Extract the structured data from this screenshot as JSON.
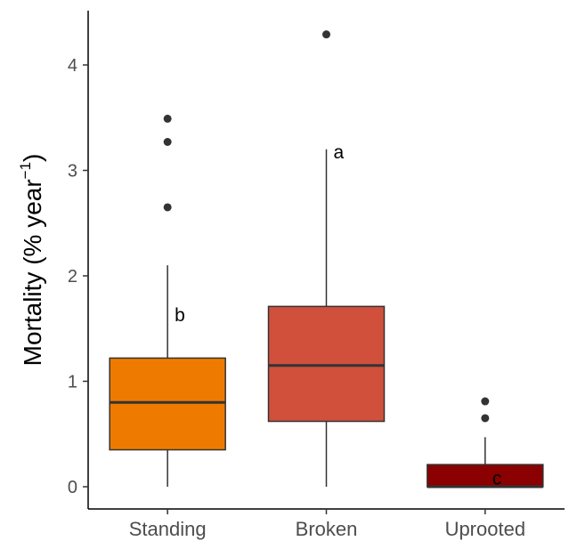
{
  "chart_data": {
    "type": "box",
    "categories": [
      "Standing",
      "Broken",
      "Uprooted"
    ],
    "ylabel": {
      "main": "Mortality (% year",
      "superscript": "−1",
      "close": ")"
    },
    "ylim": [
      -0.2,
      4.5
    ],
    "yticks": [
      0,
      1,
      2,
      3,
      4
    ],
    "grid": false,
    "boxes": [
      {
        "category": "Standing",
        "whisker_low": 0.0,
        "q1": 0.35,
        "median": 0.8,
        "q3": 1.22,
        "whisker_high": 2.1,
        "outliers": [
          2.65,
          3.27,
          3.49
        ],
        "letter": "b",
        "color": "#ee7b00"
      },
      {
        "category": "Broken",
        "whisker_low": 0.0,
        "q1": 0.62,
        "median": 1.15,
        "q3": 1.71,
        "whisker_high": 3.2,
        "outliers": [
          4.29
        ],
        "letter": "a",
        "color": "#d0503c"
      },
      {
        "category": "Uprooted",
        "whisker_low": 0.0,
        "q1": 0.0,
        "median": 0.0,
        "q3": 0.21,
        "whisker_high": 0.47,
        "outliers": [
          0.65,
          0.81
        ],
        "letter": "c",
        "color": "#8b0000"
      }
    ],
    "box_outline_color": "#333333",
    "axis_color": "#000000"
  }
}
